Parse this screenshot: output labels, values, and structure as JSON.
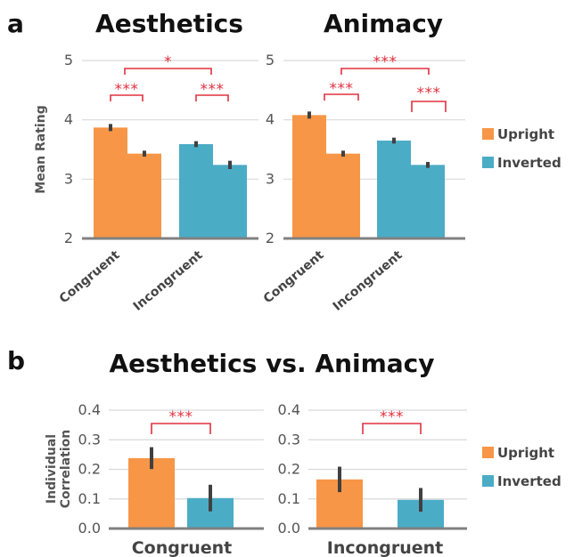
{
  "figure": {
    "panel_a_letter": "a",
    "panel_b_letter": "b",
    "panel_b_title": "Aesthetics vs. Animacy"
  },
  "colors": {
    "upright": "#f79646",
    "inverted": "#4bacc6",
    "significance": "#e0313f",
    "axis": "#808080",
    "grid": "#d9d9d9",
    "errorbar": "#404040"
  },
  "legend": {
    "upright": "Upright",
    "inverted": "Inverted"
  },
  "chart_data": [
    {
      "type": "bar",
      "title": "Aesthetics",
      "ylabel": "Mean Rating",
      "ylim": [
        2,
        5
      ],
      "yticks": [
        "2",
        "3",
        "4",
        "5"
      ],
      "categories": [
        "Congruent",
        "Incongruent"
      ],
      "series": [
        {
          "name": "Upright",
          "values": [
            3.87,
            3.43
          ],
          "errors": [
            0.06,
            0.05
          ]
        },
        {
          "name": "Inverted",
          "values": [
            3.59,
            3.24
          ],
          "errors": [
            0.05,
            0.07
          ]
        }
      ],
      "significance": [
        {
          "label": "***",
          "between": "Congruent Upright vs Congruent Inverted"
        },
        {
          "label": "***",
          "between": "Incongruent Upright vs Incongruent Inverted"
        },
        {
          "label": "*",
          "between": "Congruent vs Incongruent"
        }
      ],
      "grid": true
    },
    {
      "type": "bar",
      "title": "Animacy",
      "ylabel": "",
      "ylim": [
        2,
        5
      ],
      "yticks": [
        "2",
        "3",
        "4",
        "5"
      ],
      "categories": [
        "Congruent",
        "Incongruent"
      ],
      "series": [
        {
          "name": "Upright",
          "values": [
            4.08,
            3.43
          ],
          "errors": [
            0.06,
            0.05
          ]
        },
        {
          "name": "Inverted",
          "values": [
            3.65,
            3.24
          ],
          "errors": [
            0.05,
            0.05
          ]
        }
      ],
      "significance": [
        {
          "label": "***",
          "between": "Congruent Upright vs Congruent Inverted"
        },
        {
          "label": "***",
          "between": "Incongruent Upright vs Incongruent Inverted"
        },
        {
          "label": "***",
          "between": "Congruent vs Incongruent"
        }
      ],
      "grid": true
    },
    {
      "type": "bar",
      "title": "",
      "ylabel": "Individual Correlation",
      "ylim": [
        0,
        0.4
      ],
      "yticks": [
        "0.0",
        "0.1",
        "0.2",
        "0.3",
        "0.4"
      ],
      "categories": [
        "Congruent"
      ],
      "series": [
        {
          "name": "Upright",
          "values": [
            0.238
          ],
          "errors": [
            0.037
          ]
        },
        {
          "name": "Inverted",
          "values": [
            0.103
          ],
          "errors": [
            0.045
          ]
        }
      ],
      "significance": [
        {
          "label": "***",
          "between": "Upright vs Inverted"
        }
      ],
      "grid": true
    },
    {
      "type": "bar",
      "title": "",
      "ylabel": "",
      "ylim": [
        0,
        0.4
      ],
      "yticks": [
        "0.0",
        "0.1",
        "0.2",
        "0.3",
        "0.4"
      ],
      "categories": [
        "Incongruent"
      ],
      "series": [
        {
          "name": "Upright",
          "values": [
            0.166
          ],
          "errors": [
            0.043
          ]
        },
        {
          "name": "Inverted",
          "values": [
            0.097
          ],
          "errors": [
            0.04
          ]
        }
      ],
      "significance": [
        {
          "label": "***",
          "between": "Upright vs Inverted"
        }
      ],
      "grid": true
    }
  ]
}
